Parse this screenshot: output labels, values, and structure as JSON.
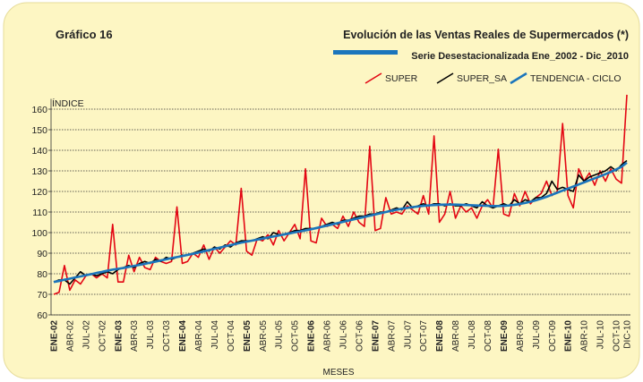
{
  "chart_data": {
    "type": "line",
    "label": "Gráfico 16",
    "title": "Evolución de las Ventas Reales de Supermercados (*)",
    "subtitle": "Serie Desestacionalizada Ene_2002 - Dic_2010",
    "y_label": "ÍNDICE",
    "x_label": "MESES",
    "ylim": [
      60,
      165
    ],
    "yticks": [
      60,
      70,
      80,
      90,
      100,
      110,
      120,
      130,
      140,
      150,
      160
    ],
    "grid": true,
    "legend": "top-right",
    "categories": [
      "ENE-02",
      null,
      null,
      "ABR-02",
      null,
      null,
      "JUL-02",
      null,
      null,
      "OCT-02",
      null,
      null,
      "ENE-03",
      null,
      null,
      "ABR-03",
      null,
      null,
      "JUL-03",
      null,
      null,
      "OCT-03",
      null,
      null,
      "ENE-04",
      null,
      null,
      "ABR-04",
      null,
      null,
      "JUL-04",
      null,
      null,
      "OCT-04",
      null,
      null,
      "ENE-05",
      null,
      null,
      "ABR-05",
      null,
      null,
      "JUL-05",
      null,
      null,
      "OCT-05",
      null,
      null,
      "ENE-06",
      null,
      null,
      "ABR-06",
      null,
      null,
      "JUL-06",
      null,
      null,
      "OCT-06",
      null,
      null,
      "ENE-07",
      null,
      null,
      "ABR-07",
      null,
      null,
      "JUL-07",
      null,
      null,
      "OCT-07",
      null,
      null,
      "ENE-08",
      null,
      null,
      "ABR-08",
      null,
      null,
      "JUL-08",
      null,
      null,
      "OCT-08",
      null,
      null,
      "ENE-09",
      null,
      null,
      "ABR-09",
      null,
      null,
      "JUL-09",
      null,
      null,
      "OCT-09",
      null,
      null,
      "ENE-10",
      null,
      null,
      "ABR-10",
      null,
      null,
      "JUL-10",
      null,
      null,
      "OCT-10",
      null,
      "DIC-10"
    ],
    "series": [
      {
        "name": "SUPER",
        "color": "#e30613",
        "width": 1.6,
        "values": [
          70,
          71,
          84,
          72,
          77,
          75,
          79,
          80,
          78,
          80,
          78,
          104,
          76,
          76,
          89,
          81,
          88,
          83,
          82,
          88,
          86,
          85,
          86,
          112.5,
          85,
          86,
          90,
          88,
          94,
          87,
          93,
          90,
          93,
          96,
          94,
          121.5,
          91,
          89,
          97,
          96,
          99,
          94,
          101,
          96,
          100,
          104,
          97,
          131,
          96,
          95,
          107,
          103,
          104,
          102,
          108,
          103,
          110,
          105,
          103,
          142,
          101,
          102,
          117,
          109,
          110,
          109,
          113,
          111,
          109,
          118,
          109,
          147,
          105,
          109,
          120,
          107,
          113,
          110,
          112,
          107,
          113,
          116,
          112,
          140.5,
          109,
          108,
          119,
          113,
          120,
          114,
          117,
          119,
          125,
          118,
          120,
          153,
          118,
          112,
          131,
          125,
          129,
          123,
          130,
          125,
          131,
          126,
          124,
          167
        ]
      },
      {
        "name": "SUPER_SA",
        "color": "#000000",
        "width": 1.6,
        "values": [
          76,
          77,
          77,
          75,
          78,
          81,
          79,
          80,
          79,
          80,
          81,
          80,
          82,
          83,
          84,
          83,
          85,
          86,
          85,
          87,
          86,
          88,
          87,
          88,
          89,
          89,
          90,
          91,
          92,
          91,
          93,
          92,
          94,
          93,
          95,
          96,
          96,
          96,
          97,
          98,
          97,
          100,
          99,
          99,
          100,
          101,
          101,
          102,
          102,
          102,
          103,
          104,
          105,
          104,
          106,
          106,
          107,
          108,
          108,
          109,
          109,
          110,
          110,
          111,
          112,
          111,
          115,
          112,
          113,
          114,
          113,
          114,
          114,
          113,
          114,
          113,
          113,
          114,
          113,
          112,
          115,
          113,
          112,
          113,
          114,
          113,
          116,
          114,
          116,
          115,
          117,
          117,
          119,
          125,
          121,
          122,
          121,
          120,
          128,
          125,
          127,
          128,
          129,
          130,
          132,
          130,
          133,
          135
        ]
      },
      {
        "name": "TENDENCIA - CICLO",
        "color": "#1b75bc",
        "width": 2.6,
        "values": [
          76.0,
          76.5,
          77.1,
          77.6,
          78.2,
          78.7,
          79.3,
          79.8,
          80.4,
          80.9,
          81.5,
          82.0,
          82.4,
          82.8,
          83.3,
          83.8,
          84.3,
          84.8,
          85.4,
          85.9,
          86.5,
          87.0,
          87.6,
          88.1,
          88.6,
          89.2,
          89.7,
          90.3,
          90.9,
          91.5,
          92.1,
          92.7,
          93.3,
          93.9,
          94.5,
          95.1,
          95.6,
          96.1,
          96.6,
          97.1,
          97.6,
          98.1,
          98.6,
          99.1,
          99.6,
          100.1,
          100.6,
          101.1,
          101.6,
          102.2,
          102.8,
          103.4,
          104.0,
          104.6,
          105.2,
          105.8,
          106.4,
          107.0,
          107.6,
          108.2,
          108.8,
          109.4,
          110.0,
          110.6,
          111.1,
          111.6,
          112.0,
          112.4,
          112.7,
          113.0,
          113.2,
          113.4,
          113.5,
          113.6,
          113.6,
          113.6,
          113.5,
          113.4,
          113.3,
          113.2,
          113.1,
          113.0,
          112.9,
          112.9,
          113.0,
          113.2,
          113.5,
          113.9,
          114.4,
          115.0,
          115.7,
          116.5,
          117.4,
          118.4,
          119.4,
          120.4,
          121.4,
          122.4,
          123.4,
          124.4,
          125.4,
          126.4,
          127.4,
          128.4,
          129.5,
          130.7,
          132.0,
          134.0
        ]
      }
    ]
  }
}
